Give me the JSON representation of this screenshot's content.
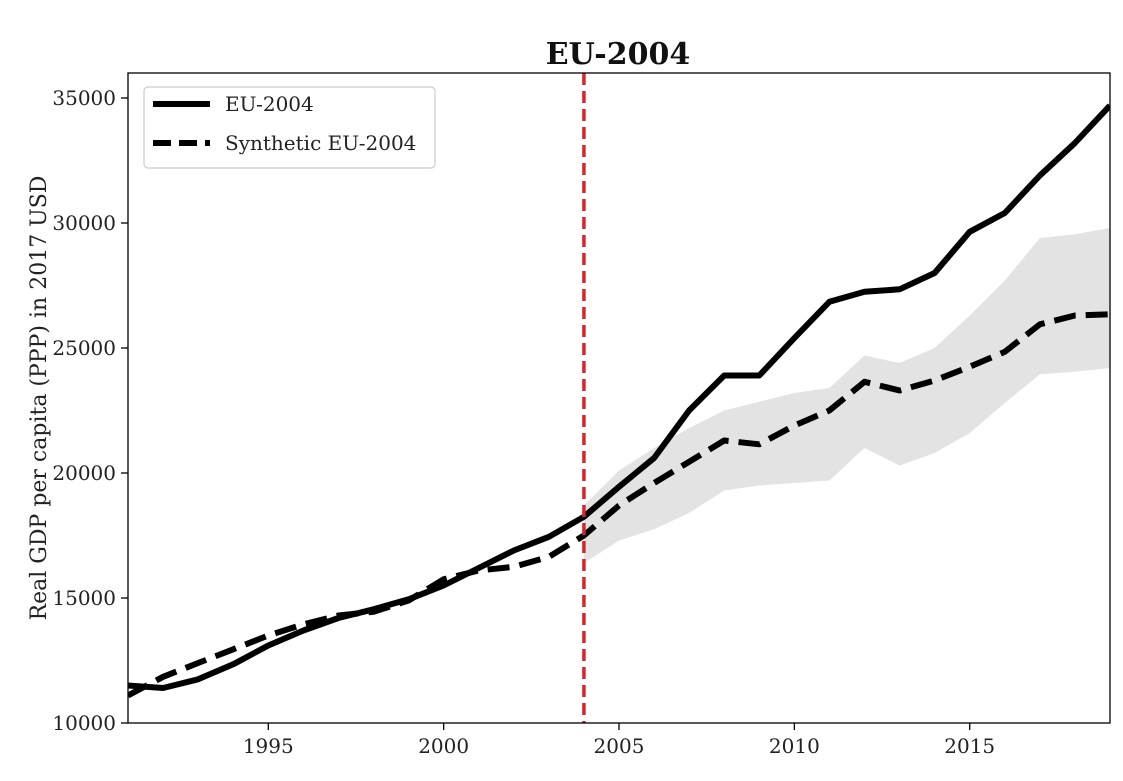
{
  "chart_data": {
    "type": "line",
    "title": "EU-2004",
    "xlabel": "",
    "ylabel": "Real GDP per capita (PPP) in 2017 USD",
    "xlim": [
      1991,
      2019
    ],
    "ylim": [
      10000,
      36000
    ],
    "x_ticks": [
      1995,
      2000,
      2005,
      2010,
      2015
    ],
    "y_ticks": [
      10000,
      15000,
      20000,
      25000,
      30000,
      35000
    ],
    "x_tick_labels": [
      "1995",
      "2000",
      "2005",
      "2010",
      "2015"
    ],
    "y_tick_labels": [
      "10000",
      "15000",
      "20000",
      "25000",
      "30000",
      "35000"
    ],
    "grid": false,
    "legend_position": "top-left",
    "intervention": {
      "x": 2004,
      "color": "#d62728",
      "style": "dashed"
    },
    "x": [
      1991,
      1992,
      1993,
      1994,
      1995,
      1996,
      1997,
      1998,
      1999,
      2000,
      2001,
      2002,
      2003,
      2004,
      2005,
      2006,
      2007,
      2008,
      2009,
      2010,
      2011,
      2012,
      2013,
      2014,
      2015,
      2016,
      2017,
      2018,
      2019
    ],
    "series": [
      {
        "name": "EU-2004",
        "style": "solid",
        "color": "#000000",
        "values": [
          11500,
          11400,
          11750,
          12350,
          13100,
          13700,
          14200,
          14550,
          14950,
          15500,
          16200,
          16900,
          17450,
          18250,
          19450,
          20600,
          22500,
          23900,
          23900,
          25400,
          26850,
          27250,
          27350,
          28000,
          29650,
          30400,
          31900,
          33200,
          34700
        ]
      },
      {
        "name": "Synthetic EU-2004",
        "style": "dashed",
        "color": "#000000",
        "values": [
          11100,
          11850,
          12400,
          12950,
          13500,
          13950,
          14300,
          14450,
          14900,
          15750,
          16100,
          16250,
          16650,
          17500,
          18700,
          19600,
          20450,
          21300,
          21150,
          21900,
          22500,
          23650,
          23300,
          23700,
          24250,
          24850,
          25950,
          26300,
          26350
        ]
      }
    ],
    "band": {
      "from_x": 2004,
      "color": "#e3e3e3",
      "lower": [
        16400,
        17300,
        17750,
        18400,
        19300,
        19500,
        19600,
        19700,
        21000,
        20300,
        20800,
        21600,
        22800,
        23950,
        24050,
        24200
      ],
      "upper": [
        18700,
        20100,
        21000,
        21800,
        22500,
        22850,
        23200,
        23400,
        24700,
        24400,
        25000,
        26300,
        27700,
        29400,
        29550,
        29800
      ]
    }
  }
}
